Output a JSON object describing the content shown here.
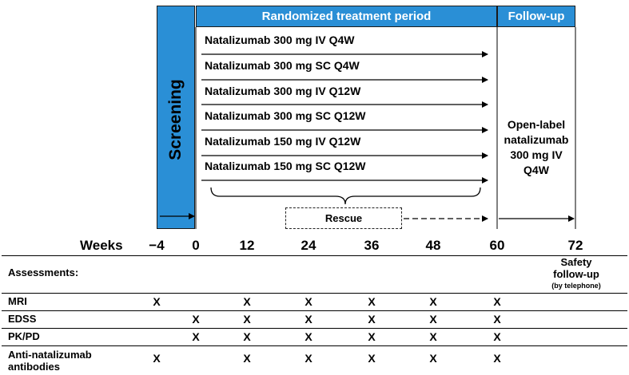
{
  "header": {
    "screening": "Screening",
    "randomized": "Randomized treatment period",
    "followup": "Follow-up"
  },
  "arms": [
    "Natalizumab 300 mg IV Q4W",
    "Natalizumab 300 mg SC Q4W",
    "Natalizumab 300 mg IV Q12W",
    "Natalizumab 300 mg SC Q12W",
    "Natalizumab 150 mg IV Q12W",
    "Natalizumab 150 mg SC Q12W"
  ],
  "open_label": {
    "line1": "Open-label",
    "line2": "natalizumab",
    "line3": "300 mg IV",
    "line4": "Q4W"
  },
  "rescue": "Rescue",
  "timeline": {
    "label": "Weeks",
    "ticks": [
      "−4",
      "0",
      "12",
      "24",
      "36",
      "48",
      "60",
      "72"
    ]
  },
  "safety": {
    "line1": "Safety",
    "line2": "follow-up",
    "line3": "(by telephone)"
  },
  "assessments_label": "Assessments:",
  "mark": "X",
  "assessments": [
    {
      "label_line1": "MRI",
      "label_line2": "",
      "marks": [
        true,
        false,
        true,
        true,
        true,
        true,
        true
      ]
    },
    {
      "label_line1": "EDSS",
      "label_line2": "",
      "marks": [
        false,
        true,
        true,
        true,
        true,
        true,
        true
      ]
    },
    {
      "label_line1": "PK/PD",
      "label_line2": "",
      "marks": [
        false,
        true,
        true,
        true,
        true,
        true,
        true
      ]
    },
    {
      "label_line1": "Anti-natalizumab",
      "label_line2": "antibodies",
      "marks": [
        true,
        false,
        true,
        true,
        true,
        true,
        true
      ]
    }
  ]
}
